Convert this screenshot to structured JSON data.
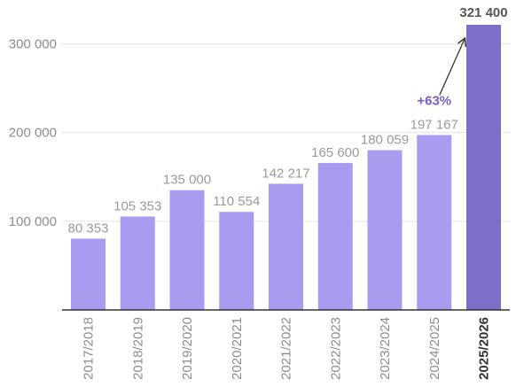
{
  "chart_data": {
    "type": "bar",
    "categories": [
      "2017/2018",
      "2018/2019",
      "2019/2020",
      "2020/2021",
      "2021/2022",
      "2022/2023",
      "2023/2024",
      "2024/2025",
      "2025/2026"
    ],
    "values": [
      80353,
      105353,
      135000,
      110554,
      142217,
      165600,
      180059,
      197167,
      321400
    ],
    "value_labels": [
      "80 353",
      "105 353",
      "135 000",
      "110 554",
      "142 217",
      "165 600",
      "180 059",
      "197 167",
      "321 400"
    ],
    "y_ticks": [
      100000,
      200000,
      300000
    ],
    "y_tick_labels": [
      "100 000",
      "200 000",
      "300 000"
    ],
    "ylim": [
      0,
      321400
    ],
    "grid": true,
    "highlight_index": 8,
    "annotation": {
      "text": "+63%",
      "color": "#7b5cc4"
    },
    "colors": {
      "bar": "#a99bf0",
      "highlight_bar": "#7d6ec7",
      "grid": "#e6e6e6",
      "axis": "#333333"
    }
  }
}
